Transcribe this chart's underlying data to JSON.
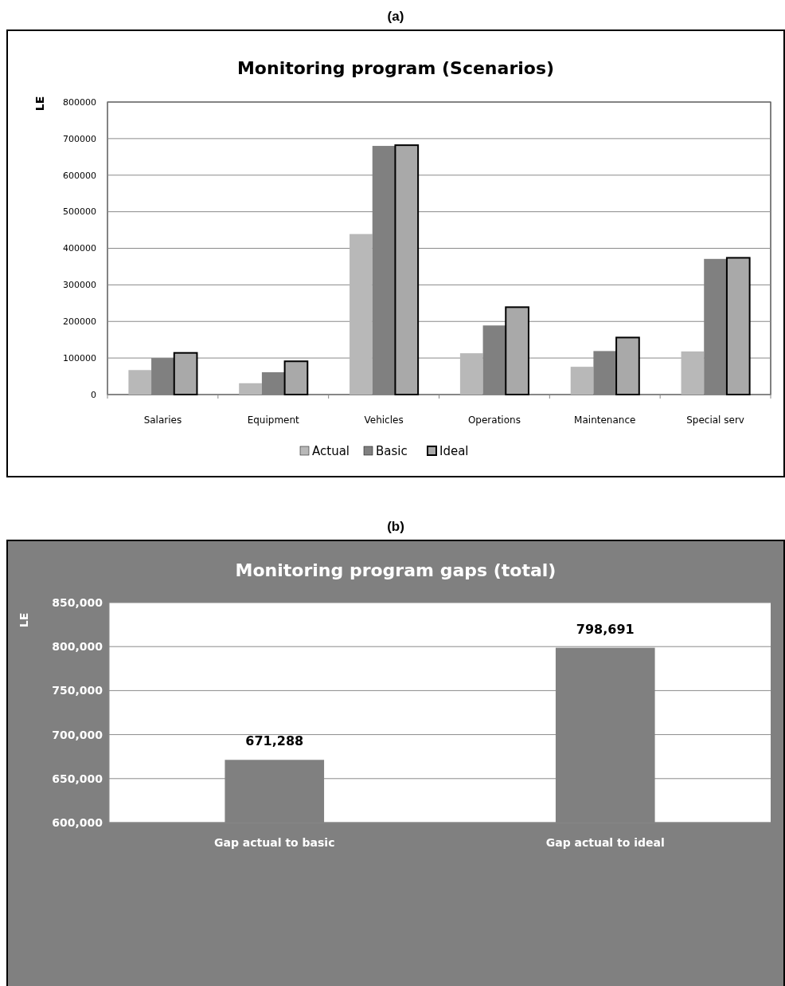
{
  "chart_data": [
    {
      "type": "bar",
      "title": "Monitoring program (Scenarios)",
      "ylabel": "LE",
      "annotations": [
        "(a)"
      ],
      "categories": [
        "Salaries",
        "Equipment",
        "Vehicles",
        "Operations",
        "Maintenance",
        "Special serv"
      ],
      "series": [
        {
          "name": "Actual",
          "color": "#b8b8b8",
          "values": [
            67000,
            31000,
            439000,
            113000,
            76000,
            118000
          ]
        },
        {
          "name": "Basic",
          "color": "#808080",
          "values": [
            100000,
            61000,
            680000,
            189000,
            119000,
            371000
          ]
        },
        {
          "name": "Ideal",
          "color": "#a9a9a9",
          "values": [
            114000,
            91000,
            682000,
            239000,
            156000,
            374000
          ]
        }
      ],
      "ylim": [
        0,
        800000
      ],
      "yticks": [
        0,
        100000,
        200000,
        300000,
        400000,
        500000,
        600000,
        700000,
        800000
      ],
      "grid": "y",
      "legend": "bottom"
    },
    {
      "type": "bar",
      "title": "Monitoring program gaps (total)",
      "ylabel": "LE",
      "annotations": [
        "(b)"
      ],
      "categories": [
        "Gap actual to basic",
        "Gap actual to ideal"
      ],
      "values": [
        671288,
        798691
      ],
      "value_labels": [
        "671,288",
        "798,691"
      ],
      "color": "#808080",
      "ylim": [
        600000,
        850000
      ],
      "yticks": [
        {
          "value": 600000,
          "label": "600,000"
        },
        {
          "value": 650000,
          "label": "650,000"
        },
        {
          "value": 700000,
          "label": "700,000"
        },
        {
          "value": 750000,
          "label": "750,000"
        },
        {
          "value": 800000,
          "label": "800,000"
        },
        {
          "value": 850000,
          "label": "850,000"
        }
      ],
      "grid": "y",
      "legend": false
    }
  ]
}
